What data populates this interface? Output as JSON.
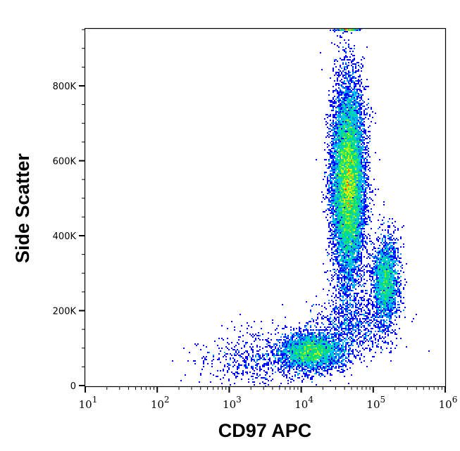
{
  "chart_data": {
    "type": "heatmap",
    "subtype": "flow-cytometry-density-scatter",
    "title": "",
    "xlabel": "CD97 APC",
    "ylabel": "Side Scatter",
    "x_scale": "log",
    "xlim": [
      10,
      1000000
    ],
    "x_ticks": [
      {
        "value": 10,
        "base": "10",
        "exp": "1"
      },
      {
        "value": 100,
        "base": "10",
        "exp": "2"
      },
      {
        "value": 1000,
        "base": "10",
        "exp": "3"
      },
      {
        "value": 10000,
        "base": "10",
        "exp": "4"
      },
      {
        "value": 100000,
        "base": "10",
        "exp": "5"
      },
      {
        "value": 1000000,
        "base": "10",
        "exp": "6"
      }
    ],
    "y_scale": "linear",
    "ylim": [
      0,
      955000
    ],
    "y_ticks": [
      {
        "value": 0,
        "label": "0"
      },
      {
        "value": 200000,
        "label": "200K"
      },
      {
        "value": 400000,
        "label": "400K"
      },
      {
        "value": 600000,
        "label": "600K"
      },
      {
        "value": 800000,
        "label": "800K"
      }
    ],
    "grid": false,
    "color_scale": [
      "#0000ff",
      "#00c8ff",
      "#00e060",
      "#ffff00",
      "#ff0000"
    ],
    "populations": [
      {
        "center_x": 45000,
        "center_y": 540000,
        "log_sd_x": 0.11,
        "sd_y": 130000,
        "events": 13000
      },
      {
        "center_x": 150000,
        "center_y": 280000,
        "log_sd_x": 0.09,
        "sd_y": 55000,
        "events": 2600
      },
      {
        "center_x": 14000,
        "center_y": 90000,
        "log_sd_x": 0.22,
        "sd_y": 25000,
        "events": 3600
      },
      {
        "center_x": 2500,
        "center_y": 70000,
        "log_sd_x": 0.4,
        "sd_y": 40000,
        "events": 600
      },
      {
        "center_x": 50000,
        "center_y": 160000,
        "log_sd_x": 0.3,
        "sd_y": 45000,
        "events": 900
      },
      {
        "center_x": 45000,
        "center_y": 952000,
        "log_sd_x": 0.08,
        "sd_y": 2000,
        "events": 500
      }
    ]
  }
}
